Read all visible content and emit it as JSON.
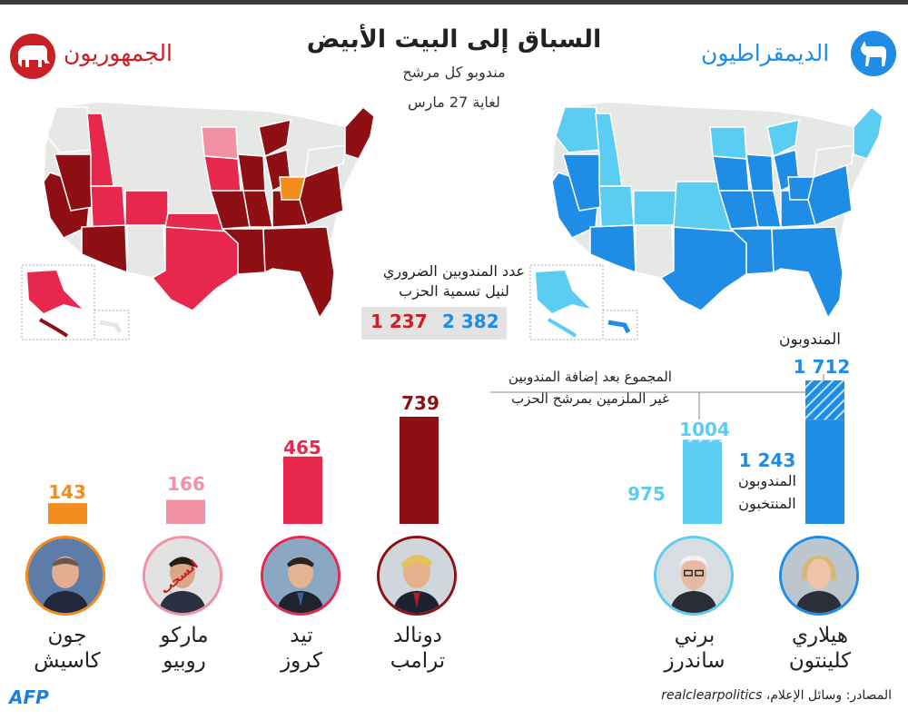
{
  "title": "السباق إلى البيت الأبيض",
  "subtitle_line1": "مندوبو كل مرشح",
  "subtitle_line2": "لغاية 27 مارس",
  "colors": {
    "trump": "#8e0f14",
    "cruz": "#e8274d",
    "rubio": "#f291a4",
    "kasich": "#f28c1c",
    "clinton": "#1f8de6",
    "sanders": "#5ccdf2",
    "gray_state": "#e5e8e5",
    "rep_label": "#c92026",
    "dem_label": "#1f8de6"
  },
  "republicans": {
    "label": "الجمهوريون",
    "logo": "elephant-icon"
  },
  "democrats": {
    "label": "الديمقراطيون",
    "logo": "donkey-icon"
  },
  "required": {
    "title_line1": "عدد المندوبين الضروري",
    "title_line2": "لنيل تسمية الحزب",
    "rep": "1 237",
    "dem": "2 382"
  },
  "dem_annotations": {
    "delegates": "المندوبون",
    "total_note_line1": "المجموع بعد إضافة المندوبين",
    "total_note_line2": "غير الملزمين بمرشح الحزب",
    "elected_line1": "المندوبون",
    "elected_line2": "المنتخبون"
  },
  "candidates": {
    "trump": {
      "first": "دونالد",
      "last": "ترامب",
      "value": "739"
    },
    "cruz": {
      "first": "تيد",
      "last": "كروز",
      "value": "465"
    },
    "rubio": {
      "first": "ماركو",
      "last": "روبيو",
      "value": "166",
      "status": "انسحب"
    },
    "kasich": {
      "first": "جون",
      "last": "كاسيش",
      "value": "143"
    },
    "clinton": {
      "first": "هيلاري",
      "last": "كلينتون",
      "total": "1 712",
      "elected": "1 243"
    },
    "sanders": {
      "first": "برني",
      "last": "ساندرز",
      "total": "1004",
      "elected": "975"
    }
  },
  "chart_data": {
    "type": "bar",
    "title": "السباق إلى البيت الأبيض",
    "subtitle": "مندوبو كل مرشح لغاية 27 مارس",
    "republicans": {
      "categories": [
        "دونالد ترامب",
        "تيد كروز",
        "ماركو روبيو",
        "جون كاسيش"
      ],
      "values": [
        739,
        465,
        166,
        143
      ],
      "required": 1237
    },
    "democrats": {
      "categories": [
        "هيلاري كلينتون",
        "برني ساندرز"
      ],
      "series": [
        {
          "name": "المندوبون المنتخبون",
          "values": [
            1243,
            975
          ]
        },
        {
          "name": "المجموع بعد إضافة المندوبين غير الملزمين بمرشح الحزب",
          "values": [
            1712,
            1004
          ]
        }
      ],
      "required": 2382
    }
  },
  "source": {
    "label": "المصادر: وسائل الإعلام،",
    "site": "realclearpolitics"
  },
  "agency": "AFP"
}
